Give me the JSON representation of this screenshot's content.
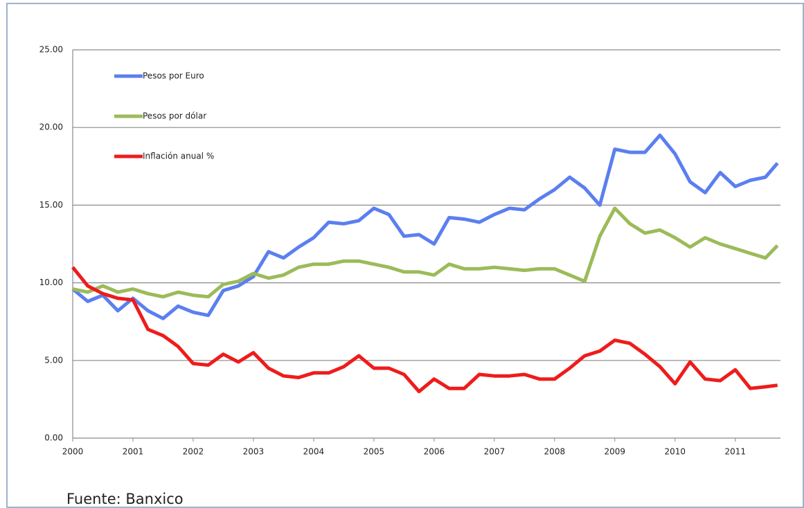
{
  "chart_data": {
    "type": "line",
    "x": [
      2000,
      2000.25,
      2000.5,
      2000.75,
      2001,
      2001.25,
      2001.5,
      2001.75,
      2002,
      2002.25,
      2002.5,
      2002.75,
      2003,
      2003.25,
      2003.5,
      2003.75,
      2004,
      2004.25,
      2004.5,
      2004.75,
      2005,
      2005.25,
      2005.5,
      2005.75,
      2006,
      2006.25,
      2006.5,
      2006.75,
      2007,
      2007.25,
      2007.5,
      2007.75,
      2008,
      2008.25,
      2008.5,
      2008.75,
      2009,
      2009.25,
      2009.5,
      2009.75,
      2010,
      2010.25,
      2010.5,
      2010.75,
      2011,
      2011.25,
      2011.5,
      2011.7
    ],
    "series": [
      {
        "name": "Pesos por Euro",
        "color": "#5b7ff0",
        "values": [
          9.6,
          8.8,
          9.2,
          8.2,
          9.0,
          8.2,
          7.7,
          8.5,
          8.1,
          7.9,
          9.5,
          9.8,
          10.4,
          12.0,
          11.6,
          12.3,
          12.9,
          13.9,
          13.8,
          14.0,
          14.8,
          14.4,
          13.0,
          13.1,
          12.5,
          14.2,
          14.1,
          13.9,
          14.4,
          14.8,
          14.7,
          15.4,
          16.0,
          16.8,
          16.1,
          15.0,
          18.6,
          18.4,
          18.4,
          19.5,
          18.3,
          16.5,
          15.8,
          17.1,
          16.2,
          16.6,
          16.8,
          17.7
        ]
      },
      {
        "name": "Pesos por dólar",
        "color": "#9bbb59",
        "values": [
          9.6,
          9.4,
          9.8,
          9.4,
          9.6,
          9.3,
          9.1,
          9.4,
          9.2,
          9.1,
          9.9,
          10.1,
          10.6,
          10.3,
          10.5,
          11.0,
          11.2,
          11.2,
          11.4,
          11.4,
          11.2,
          11.0,
          10.7,
          10.7,
          10.5,
          11.2,
          10.9,
          10.9,
          11.0,
          10.9,
          10.8,
          10.9,
          10.9,
          10.5,
          10.1,
          13.0,
          14.8,
          13.8,
          13.2,
          13.4,
          12.9,
          12.3,
          12.9,
          12.5,
          12.2,
          11.9,
          11.6,
          12.4
        ]
      },
      {
        "name": "Inflación anual %",
        "color": "#ee1c1c",
        "values": [
          11.0,
          9.8,
          9.3,
          9.0,
          8.9,
          7.0,
          6.6,
          5.9,
          4.8,
          4.7,
          5.4,
          4.9,
          5.5,
          4.5,
          4.0,
          3.9,
          4.2,
          4.2,
          4.6,
          5.3,
          4.5,
          4.5,
          4.1,
          3.0,
          3.8,
          3.2,
          3.2,
          4.1,
          4.0,
          4.0,
          4.1,
          3.8,
          3.8,
          4.5,
          5.3,
          5.6,
          6.3,
          6.1,
          5.4,
          4.6,
          3.5,
          4.9,
          3.8,
          3.7,
          4.4,
          3.2,
          3.3,
          3.4
        ]
      }
    ],
    "xlim": [
      2000,
      2011.75
    ],
    "xticks": [
      2000,
      2001,
      2002,
      2003,
      2004,
      2005,
      2006,
      2007,
      2008,
      2009,
      2010,
      2011
    ],
    "ylim": [
      0,
      25
    ],
    "yticks": [
      {
        "value": 0,
        "label": "0.00"
      },
      {
        "value": 5,
        "label": "5.00"
      },
      {
        "value": 10,
        "label": "10.00"
      },
      {
        "value": 15,
        "label": "15.00"
      },
      {
        "value": 20,
        "label": "20.00"
      },
      {
        "value": 25,
        "label": "25.00"
      }
    ],
    "grid": true,
    "legend": "top-left",
    "source": "Fuente: Banxico"
  }
}
